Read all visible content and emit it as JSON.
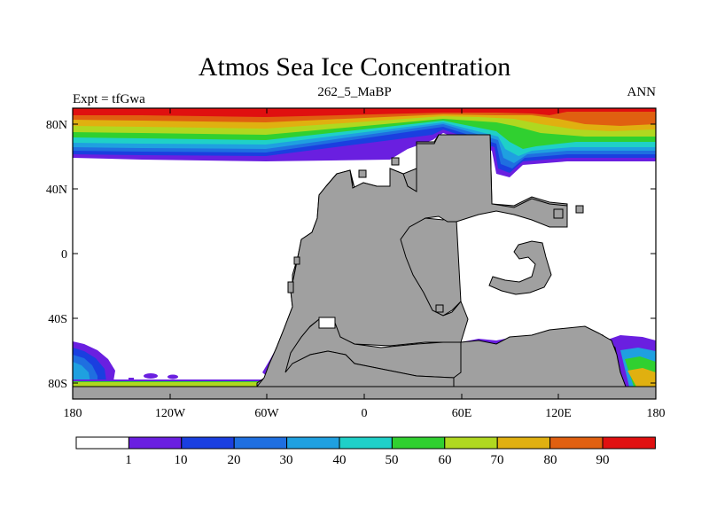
{
  "title": "Atmos Sea Ice Concentration",
  "subtitle_left": "Expt = tfGwa",
  "subtitle_center": "262_5_MaBP",
  "subtitle_right": "ANN",
  "colors": {
    "land": "#a0a0a0",
    "ocean": "#ffffff",
    "scale": [
      "#ffffff",
      "#6a1fe0",
      "#1a3fe0",
      "#1f6fe0",
      "#1fa0e0",
      "#1fd0c8",
      "#30d030",
      "#b0d820",
      "#e0b010",
      "#e06010",
      "#e01010"
    ]
  },
  "map": {
    "lat_labels": [
      "80N",
      "40N",
      "0",
      "40S",
      "80S"
    ],
    "lon_labels": [
      "180",
      "120W",
      "60W",
      "0",
      "60E",
      "120E",
      "180"
    ]
  },
  "colorbar": {
    "labels": [
      "1",
      "10",
      "20",
      "30",
      "40",
      "50",
      "60",
      "70",
      "80",
      "90"
    ]
  }
}
